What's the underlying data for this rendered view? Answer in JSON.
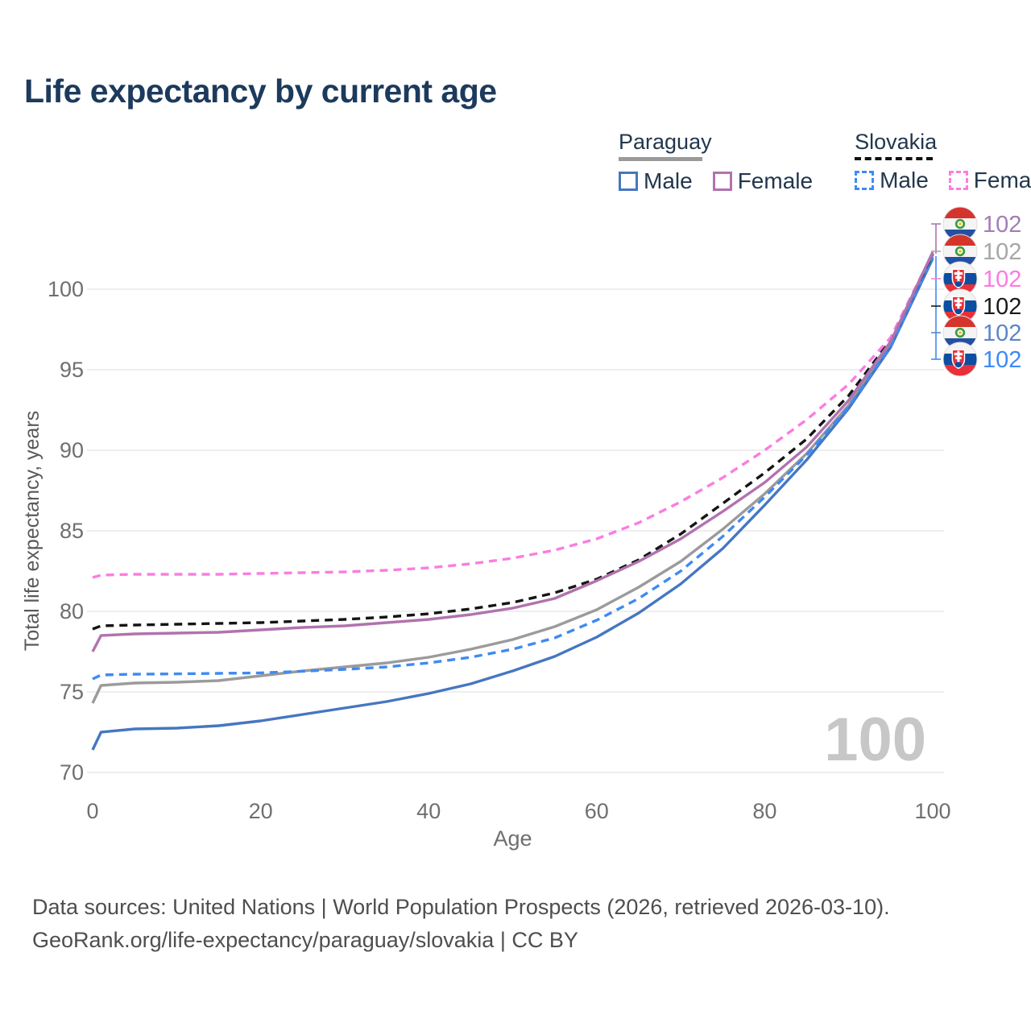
{
  "title": "Life expectancy by current age",
  "legend": {
    "groups": [
      {
        "label": "Paraguay",
        "line_style": "solid",
        "underline_color": "#9a9a9a",
        "items": [
          {
            "label": "Male",
            "color": "#4577c1"
          },
          {
            "label": "Female",
            "color": "#b172ae"
          }
        ]
      },
      {
        "label": "Slovakia",
        "line_style": "dashed",
        "underline_color": "#111111",
        "items": [
          {
            "label": "Male",
            "color": "#3f8af2"
          },
          {
            "label": "Female",
            "color": "#fa7de1"
          }
        ]
      }
    ]
  },
  "chart_data": {
    "type": "line",
    "title": "Life expectancy by current age",
    "xlabel": "Age",
    "ylabel": "Total life expectancy, years",
    "xlim": [
      0,
      100
    ],
    "ylim": [
      69,
      103
    ],
    "xticks": [
      0,
      20,
      40,
      60,
      80,
      100
    ],
    "yticks": [
      70,
      75,
      80,
      85,
      90,
      95,
      100
    ],
    "grid": "horizontal",
    "legend_position": "top-right",
    "watermark": "100",
    "x": [
      0,
      1,
      5,
      10,
      15,
      20,
      25,
      30,
      35,
      40,
      45,
      50,
      55,
      60,
      65,
      70,
      75,
      80,
      85,
      90,
      95,
      100
    ],
    "series": [
      {
        "name": "Paraguay Both sexes",
        "country": "Paraguay",
        "sex": "both",
        "color": "#9b9b9b",
        "line_style": "solid",
        "values": [
          74.3,
          75.4,
          75.55,
          75.6,
          75.7,
          76.0,
          76.3,
          76.55,
          76.8,
          77.15,
          77.65,
          78.25,
          79.05,
          80.1,
          81.5,
          83.1,
          85.1,
          87.3,
          89.8,
          92.8,
          96.55,
          102.15
        ],
        "end_label": "102"
      },
      {
        "name": "Paraguay Male",
        "country": "Paraguay",
        "sex": "male",
        "color": "#4577c1",
        "line_style": "solid",
        "values": [
          71.4,
          72.5,
          72.7,
          72.75,
          72.9,
          73.2,
          73.6,
          74.0,
          74.4,
          74.9,
          75.5,
          76.3,
          77.2,
          78.4,
          79.9,
          81.7,
          83.9,
          86.6,
          89.4,
          92.6,
          96.4,
          101.9
        ],
        "end_label": "102"
      },
      {
        "name": "Slovakia Male",
        "country": "Slovakia",
        "sex": "male",
        "color": "#3f8af2",
        "line_style": "dashed",
        "values": [
          75.8,
          76.05,
          76.1,
          76.12,
          76.15,
          76.18,
          76.28,
          76.4,
          76.55,
          76.8,
          77.15,
          77.65,
          78.35,
          79.45,
          80.8,
          82.5,
          84.65,
          87.1,
          89.7,
          92.7,
          96.45,
          102.0
        ],
        "end_label": "102"
      },
      {
        "name": "Slovakia Both sexes",
        "country": "Slovakia",
        "sex": "both",
        "color": "#141414",
        "line_style": "dashed",
        "values": [
          78.9,
          79.1,
          79.15,
          79.2,
          79.25,
          79.3,
          79.4,
          79.5,
          79.65,
          79.85,
          80.15,
          80.55,
          81.15,
          82.0,
          83.2,
          84.8,
          86.7,
          88.6,
          90.7,
          93.4,
          96.85,
          102.2
        ],
        "end_label": "102"
      },
      {
        "name": "Slovakia Female",
        "country": "Slovakia",
        "sex": "female",
        "color": "#fa7de1",
        "line_style": "dashed",
        "values": [
          82.1,
          82.25,
          82.3,
          82.3,
          82.3,
          82.35,
          82.4,
          82.45,
          82.55,
          82.7,
          82.95,
          83.3,
          83.8,
          84.5,
          85.5,
          86.8,
          88.3,
          90.0,
          91.9,
          94.1,
          97.0,
          102.25
        ],
        "end_label": "102"
      },
      {
        "name": "Paraguay Female",
        "country": "Paraguay",
        "sex": "female",
        "color": "#b172ae",
        "line_style": "solid",
        "values": [
          77.5,
          78.5,
          78.6,
          78.65,
          78.7,
          78.85,
          79.0,
          79.1,
          79.3,
          79.5,
          79.8,
          80.2,
          80.8,
          81.9,
          83.1,
          84.5,
          86.2,
          88.0,
          90.2,
          93.1,
          96.75,
          102.3
        ],
        "end_label": "102"
      }
    ],
    "right_labels": [
      {
        "series": "Paraguay Female",
        "flag": "paraguay",
        "value": "102",
        "color": "#a57cb5"
      },
      {
        "series": "Paraguay Both sexes",
        "flag": "paraguay",
        "value": "102",
        "color": "#a6a6a6"
      },
      {
        "series": "Slovakia Female",
        "flag": "slovakia",
        "value": "102",
        "color": "#fb7be0"
      },
      {
        "series": "Slovakia Both sexes",
        "flag": "slovakia",
        "value": "102",
        "color": "#1a1a1a"
      },
      {
        "series": "Paraguay Male",
        "flag": "paraguay",
        "value": "102",
        "color": "#5b86c9"
      },
      {
        "series": "Slovakia Male",
        "flag": "slovakia",
        "value": "102",
        "color": "#3e8af4"
      }
    ]
  },
  "footer": {
    "line1": "Data sources: United Nations | World Population Prospects (2026, retrieved 2026-03-10).",
    "line2": "GeoRank.org/life-expectancy/paraguay/slovakia | CC BY"
  }
}
